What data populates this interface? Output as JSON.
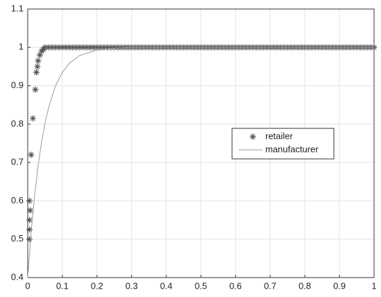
{
  "chart_data": {
    "type": "scatter",
    "xlim": [
      0,
      1
    ],
    "ylim": [
      0.4,
      1.1
    ],
    "xticks": [
      0,
      0.1,
      0.2,
      0.3,
      0.4,
      0.5,
      0.6,
      0.7,
      0.8,
      0.9,
      1
    ],
    "yticks": [
      0.4,
      0.5,
      0.6,
      0.7,
      0.8,
      0.9,
      1,
      1.1
    ],
    "grid": true,
    "legend_position": "right",
    "series": [
      {
        "name": "retailer",
        "type": "scatter",
        "marker": "*",
        "color": "#555555",
        "x": [
          0.005,
          0.005,
          0.005,
          0.007,
          0.005,
          0.01,
          0.015,
          0.022,
          0.025,
          0.028,
          0.03,
          0.035,
          0.04,
          0.045,
          0.05,
          0.06,
          0.07,
          0.08,
          0.09,
          0.1,
          0.11,
          0.12,
          0.13,
          0.14,
          0.15,
          0.16,
          0.17,
          0.18,
          0.19,
          0.2,
          0.21,
          0.22,
          0.23,
          0.24,
          0.25,
          0.26,
          0.27,
          0.28,
          0.29,
          0.3,
          0.31,
          0.32,
          0.33,
          0.34,
          0.35,
          0.36,
          0.37,
          0.38,
          0.39,
          0.4,
          0.41,
          0.42,
          0.43,
          0.44,
          0.45,
          0.46,
          0.47,
          0.48,
          0.49,
          0.5,
          0.51,
          0.52,
          0.53,
          0.54,
          0.55,
          0.56,
          0.57,
          0.58,
          0.59,
          0.6,
          0.61,
          0.62,
          0.63,
          0.64,
          0.65,
          0.66,
          0.67,
          0.68,
          0.69,
          0.7,
          0.71,
          0.72,
          0.73,
          0.74,
          0.75,
          0.76,
          0.77,
          0.78,
          0.79,
          0.8,
          0.81,
          0.82,
          0.83,
          0.84,
          0.85,
          0.86,
          0.87,
          0.88,
          0.89,
          0.9,
          0.91,
          0.92,
          0.93,
          0.94,
          0.95,
          0.96,
          0.97,
          0.98,
          0.99,
          1
        ],
        "values": [
          0.5,
          0.525,
          0.55,
          0.575,
          0.6,
          0.72,
          0.815,
          0.89,
          0.935,
          0.95,
          0.965,
          0.98,
          0.99,
          0.995,
          1,
          1,
          1,
          1,
          1,
          1,
          1,
          1,
          1,
          1,
          1,
          1,
          1,
          1,
          1,
          1,
          1,
          1,
          1,
          1,
          1,
          1,
          1,
          1,
          1,
          1,
          1,
          1,
          1,
          1,
          1,
          1,
          1,
          1,
          1,
          1,
          1,
          1,
          1,
          1,
          1,
          1,
          1,
          1,
          1,
          1,
          1,
          1,
          1,
          1,
          1,
          1,
          1,
          1,
          1,
          1,
          1,
          1,
          1,
          1,
          1,
          1,
          1,
          1,
          1,
          1,
          1,
          1,
          1,
          1,
          1,
          1,
          1,
          1,
          1,
          1,
          1,
          1,
          1,
          1,
          1,
          1,
          1,
          1,
          1,
          1,
          1,
          1,
          1,
          1,
          1,
          1,
          1,
          1,
          1,
          1
        ]
      },
      {
        "name": "manufacturer",
        "type": "line",
        "color": "#999999",
        "x": [
          0,
          0.01,
          0.02,
          0.03,
          0.04,
          0.05,
          0.06,
          0.08,
          0.1,
          0.12,
          0.15,
          0.2,
          0.25,
          0.3,
          1
        ],
        "values": [
          0.4,
          0.519,
          0.615,
          0.692,
          0.753,
          0.803,
          0.842,
          0.899,
          0.935,
          0.958,
          0.979,
          0.993,
          0.998,
          1,
          1
        ]
      }
    ]
  }
}
